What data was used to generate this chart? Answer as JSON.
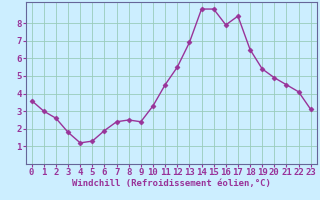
{
  "x": [
    0,
    1,
    2,
    3,
    4,
    5,
    6,
    7,
    8,
    9,
    10,
    11,
    12,
    13,
    14,
    15,
    16,
    17,
    18,
    19,
    20,
    21,
    22,
    23
  ],
  "y": [
    3.6,
    3.0,
    2.6,
    1.8,
    1.2,
    1.3,
    1.9,
    2.4,
    2.5,
    2.4,
    3.3,
    4.5,
    5.5,
    6.9,
    8.8,
    8.8,
    7.9,
    8.4,
    6.5,
    5.4,
    4.9,
    4.5,
    4.1,
    3.1
  ],
  "line_color": "#993399",
  "marker": "D",
  "marker_size": 2.5,
  "bg_color": "#cceeff",
  "grid_color": "#99ccbb",
  "xlabel": "Windchill (Refroidissement éolien,°C)",
  "ylabel": "",
  "xlim_min": -0.5,
  "xlim_max": 23.5,
  "ylim_min": 0,
  "ylim_max": 9.2,
  "xticks": [
    0,
    1,
    2,
    3,
    4,
    5,
    6,
    7,
    8,
    9,
    10,
    11,
    12,
    13,
    14,
    15,
    16,
    17,
    18,
    19,
    20,
    21,
    22,
    23
  ],
  "yticks": [
    1,
    2,
    3,
    4,
    5,
    6,
    7,
    8
  ],
  "xlabel_color": "#993399",
  "tick_color": "#993399",
  "spine_color": "#666699",
  "font_size_xlabel": 6.5,
  "font_size_tick": 6.5,
  "linewidth": 1.0
}
